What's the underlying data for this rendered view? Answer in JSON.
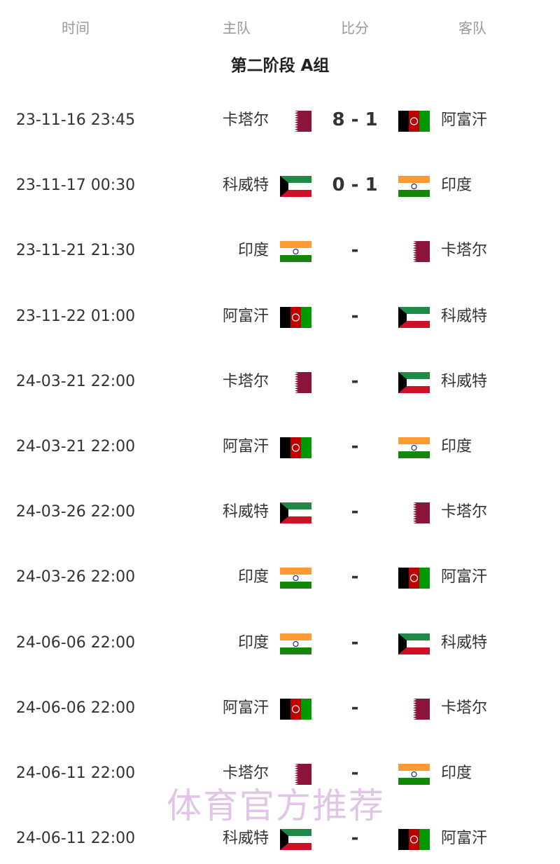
{
  "header": {
    "time": "时间",
    "home": "主队",
    "score": "比分",
    "away": "客队"
  },
  "title": "第二阶段 A组",
  "watermark": "体育官方推荐",
  "flag_colors": {
    "qatar": "#8a1538",
    "kuwait_green": "#1e8a45",
    "kuwait_red": "#ce1126",
    "india_saffron": "#ff9933",
    "india_green": "#138808",
    "afghanistan_red": "#be0000",
    "afghanistan_green": "#009900"
  },
  "matches": [
    {
      "time": "23-11-16 23:45",
      "home": "卡塔尔",
      "home_flag": "qatar",
      "score": "8 - 1",
      "away": "阿富汗",
      "away_flag": "afghanistan"
    },
    {
      "time": "23-11-17 00:30",
      "home": "科威特",
      "home_flag": "kuwait",
      "score": "0 - 1",
      "away": "印度",
      "away_flag": "india"
    },
    {
      "time": "23-11-21 21:30",
      "home": "印度",
      "home_flag": "india",
      "score": "-",
      "away": "卡塔尔",
      "away_flag": "qatar"
    },
    {
      "time": "23-11-22 01:00",
      "home": "阿富汗",
      "home_flag": "afghanistan",
      "score": "-",
      "away": "科威特",
      "away_flag": "kuwait"
    },
    {
      "time": "24-03-21 22:00",
      "home": "卡塔尔",
      "home_flag": "qatar",
      "score": "-",
      "away": "科威特",
      "away_flag": "kuwait"
    },
    {
      "time": "24-03-21 22:00",
      "home": "阿富汗",
      "home_flag": "afghanistan",
      "score": "-",
      "away": "印度",
      "away_flag": "india"
    },
    {
      "time": "24-03-26 22:00",
      "home": "科威特",
      "home_flag": "kuwait",
      "score": "-",
      "away": "卡塔尔",
      "away_flag": "qatar"
    },
    {
      "time": "24-03-26 22:00",
      "home": "印度",
      "home_flag": "india",
      "score": "-",
      "away": "阿富汗",
      "away_flag": "afghanistan"
    },
    {
      "time": "24-06-06 22:00",
      "home": "印度",
      "home_flag": "india",
      "score": "-",
      "away": "科威特",
      "away_flag": "kuwait"
    },
    {
      "time": "24-06-06 22:00",
      "home": "阿富汗",
      "home_flag": "afghanistan",
      "score": "-",
      "away": "卡塔尔",
      "away_flag": "qatar"
    },
    {
      "time": "24-06-11 22:00",
      "home": "卡塔尔",
      "home_flag": "qatar",
      "score": "-",
      "away": "印度",
      "away_flag": "india"
    },
    {
      "time": "24-06-11 22:00",
      "home": "科威特",
      "home_flag": "kuwait",
      "score": "-",
      "away": "阿富汗",
      "away_flag": "afghanistan"
    }
  ]
}
